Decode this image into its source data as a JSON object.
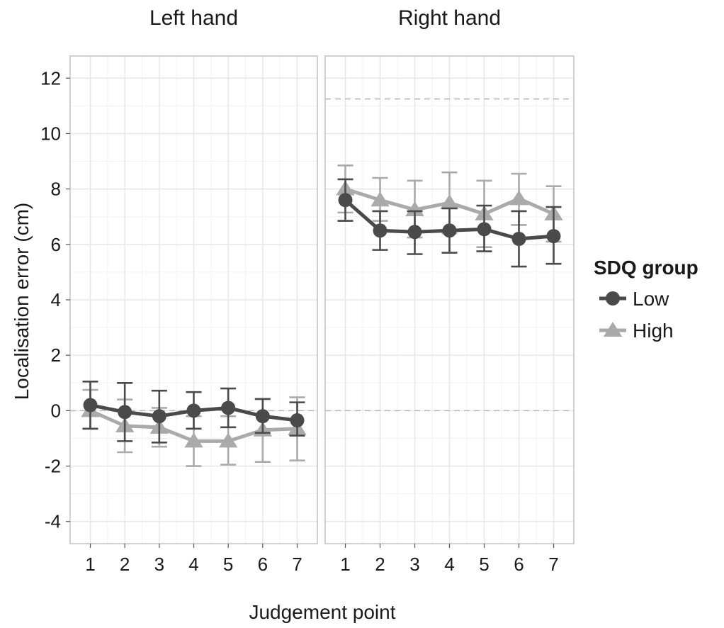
{
  "chart_data": {
    "type": "line",
    "xlabel": "Judgement point",
    "ylabel": "Localisation error (cm)",
    "x": [
      1,
      2,
      3,
      4,
      5,
      6,
      7
    ],
    "ylim": [
      -4.8,
      12.8
    ],
    "yticks": [
      -4,
      -2,
      0,
      2,
      4,
      6,
      8,
      10,
      12
    ],
    "grid": true,
    "legend": {
      "title": "SDQ group",
      "position": "right",
      "entries": [
        {
          "label": "Low",
          "marker": "circle",
          "color": "#4a4a4a"
        },
        {
          "label": "High",
          "marker": "triangle",
          "color": "#aaaaaa"
        }
      ]
    },
    "panels": [
      {
        "title": "Left hand",
        "reference_lines": [
          0
        ],
        "series": [
          {
            "name": "Low",
            "values": [
              0.2,
              -0.05,
              -0.2,
              0.0,
              0.1,
              -0.2,
              -0.35
            ],
            "err_low": [
              -0.65,
              -1.1,
              -1.15,
              -0.65,
              -0.6,
              -0.8,
              -0.9
            ],
            "err_high": [
              1.05,
              1.0,
              0.72,
              0.67,
              0.8,
              0.42,
              0.3
            ]
          },
          {
            "name": "High",
            "values": [
              0.0,
              -0.55,
              -0.6,
              -1.1,
              -1.1,
              -0.7,
              -0.65
            ],
            "err_low": [
              -0.65,
              -1.5,
              -1.3,
              -2.0,
              -1.95,
              -1.85,
              -1.8
            ],
            "err_high": [
              0.75,
              0.4,
              0.1,
              -0.2,
              -0.2,
              0.42,
              0.48
            ]
          }
        ]
      },
      {
        "title": "Right hand",
        "reference_lines": [
          0,
          11.25
        ],
        "series": [
          {
            "name": "Low",
            "values": [
              7.6,
              6.5,
              6.45,
              6.5,
              6.55,
              6.2,
              6.3
            ],
            "err_low": [
              6.85,
              5.8,
              5.65,
              5.7,
              5.75,
              5.2,
              5.3
            ],
            "err_high": [
              8.35,
              7.2,
              7.2,
              7.3,
              7.4,
              7.2,
              7.35
            ]
          },
          {
            "name": "High",
            "values": [
              8.0,
              7.6,
              7.25,
              7.5,
              7.1,
              7.65,
              7.1
            ],
            "err_low": [
              7.15,
              6.85,
              6.25,
              6.4,
              5.9,
              6.7,
              6.1
            ],
            "err_high": [
              8.85,
              8.4,
              8.3,
              8.6,
              8.3,
              8.55,
              8.1
            ]
          }
        ]
      }
    ]
  }
}
